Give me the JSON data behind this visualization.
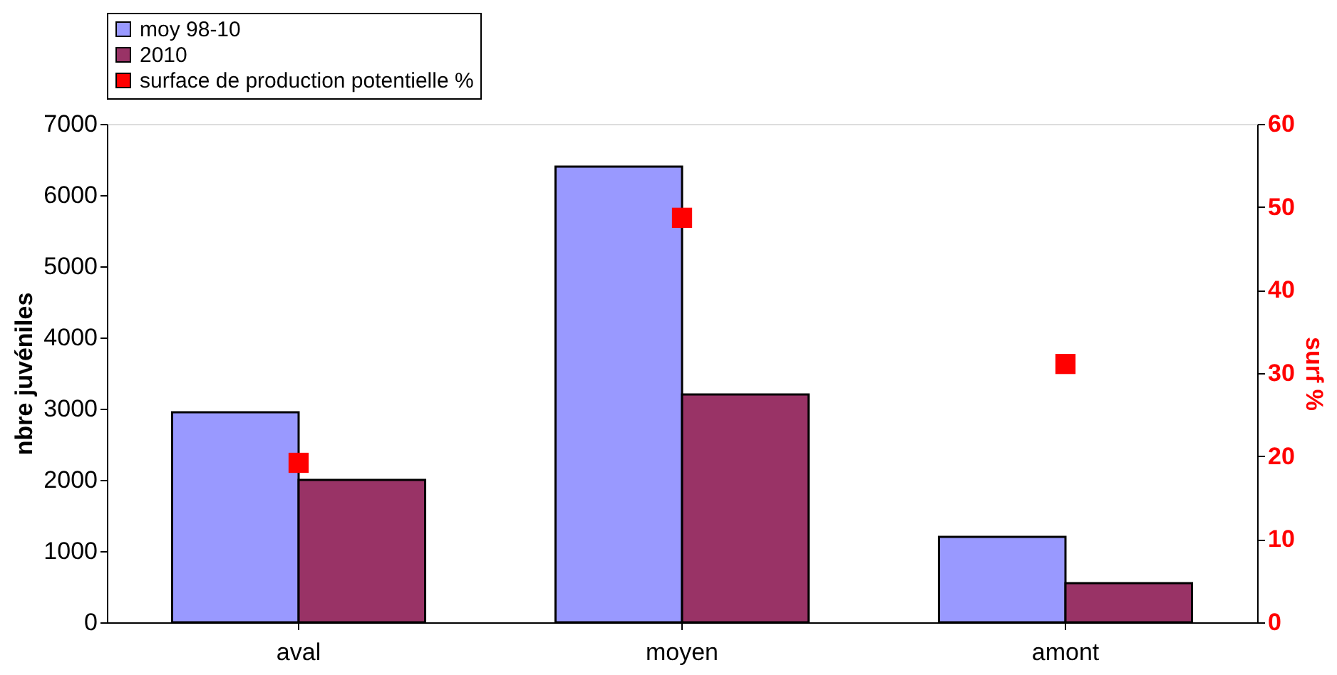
{
  "chart_data": {
    "type": "bar",
    "categories": [
      "aval",
      "moyen",
      "amont"
    ],
    "ylabel": "nbre juvéniles",
    "y2label": "surf %",
    "ylim": [
      0,
      7000
    ],
    "yticks": [
      0,
      1000,
      2000,
      3000,
      4000,
      5000,
      6000,
      7000
    ],
    "y2lim": [
      0,
      60
    ],
    "y2ticks": [
      0,
      10,
      20,
      30,
      40,
      50,
      60
    ],
    "series": [
      {
        "name": "moy 98-10",
        "color": "#9999ff",
        "values": [
          2950,
          6400,
          1200
        ]
      },
      {
        "name": "2010",
        "color": "#993366",
        "values": [
          2000,
          3200,
          550
        ]
      },
      {
        "name": "surface de production potentielle %",
        "color": "#ff0000",
        "type": "scatter",
        "axis": "y2",
        "marker": "square",
        "values": [
          19.2,
          48.7,
          31.1
        ]
      }
    ],
    "legend": "top",
    "grid": false
  }
}
